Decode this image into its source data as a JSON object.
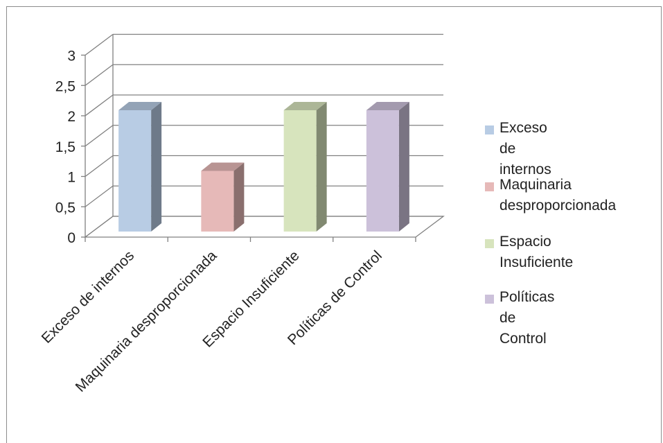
{
  "chart_data": {
    "type": "bar",
    "style": "3d-clustered-column",
    "categories": [
      "Exceso de internos",
      "Maquinaria desproporcionada",
      "Espacio Insuficiente",
      "Políticas de Control"
    ],
    "series": [
      {
        "category": "Exceso de internos",
        "value": 2,
        "color": "#b8cce4"
      },
      {
        "category": "Maquinaria desproporcionada",
        "value": 1,
        "color": "#e6b9b8"
      },
      {
        "category": "Espacio Insuficiente",
        "value": 2,
        "color": "#d7e4bd"
      },
      {
        "category": "Políticas de Control",
        "value": 2,
        "color": "#ccc1da"
      }
    ],
    "yticks": [
      "0",
      "0,5",
      "1",
      "1,5",
      "2",
      "2,5",
      "3"
    ],
    "ylim": [
      0,
      3
    ],
    "grid": true,
    "legend_position": "right",
    "legend": [
      {
        "label": "Exceso de internos",
        "color": "#b8cce4"
      },
      {
        "label": "Maquinaria\ndesproporcionada",
        "color": "#e6b9b8"
      },
      {
        "label": "Espacio Insuficiente",
        "color": "#d7e4bd"
      },
      {
        "label": "Políticas de Control",
        "color": "#ccc1da"
      }
    ]
  }
}
